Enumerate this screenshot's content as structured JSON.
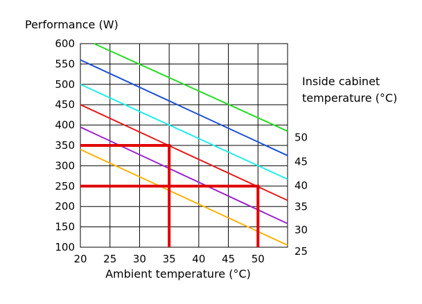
{
  "chart_data": {
    "type": "line",
    "ylabel": "Performance (W)",
    "xlabel": "Ambient temperature (°C)",
    "legend_title": [
      "Inside cabinet",
      "temperature (°C)"
    ],
    "xlim": [
      20,
      55
    ],
    "ylim": [
      100,
      600
    ],
    "grid": true,
    "x_ticks": [
      20,
      25,
      30,
      35,
      40,
      45,
      50
    ],
    "y_ticks": [
      600,
      550,
      500,
      450,
      400,
      350,
      300,
      250,
      200,
      150,
      100
    ],
    "series": [
      {
        "name": "50",
        "color": "#22dd22",
        "points": [
          [
            22.3,
            600
          ],
          [
            55,
            385
          ]
        ]
      },
      {
        "name": "45",
        "color": "#1a4fd6",
        "points": [
          [
            20,
            560
          ],
          [
            55,
            325
          ]
        ]
      },
      {
        "name": "40",
        "color": "#22eeee",
        "points": [
          [
            20,
            500
          ],
          [
            55,
            267
          ]
        ]
      },
      {
        "name": "35",
        "color": "#e81818",
        "points": [
          [
            20,
            450
          ],
          [
            55,
            215
          ]
        ]
      },
      {
        "name": "30",
        "color": "#9a22cc",
        "points": [
          [
            20,
            395
          ],
          [
            55,
            158
          ]
        ]
      },
      {
        "name": "25",
        "color": "#ffb20a",
        "points": [
          [
            20,
            340
          ],
          [
            55,
            105
          ]
        ]
      }
    ],
    "annotations": [
      {
        "type": "reference-path",
        "color": "#e00000",
        "points": [
          [
            20,
            350
          ],
          [
            35,
            350
          ],
          [
            35,
            100
          ]
        ]
      },
      {
        "type": "reference-path",
        "color": "#e00000",
        "points": [
          [
            20,
            250
          ],
          [
            50,
            250
          ],
          [
            50,
            100
          ]
        ]
      }
    ]
  }
}
